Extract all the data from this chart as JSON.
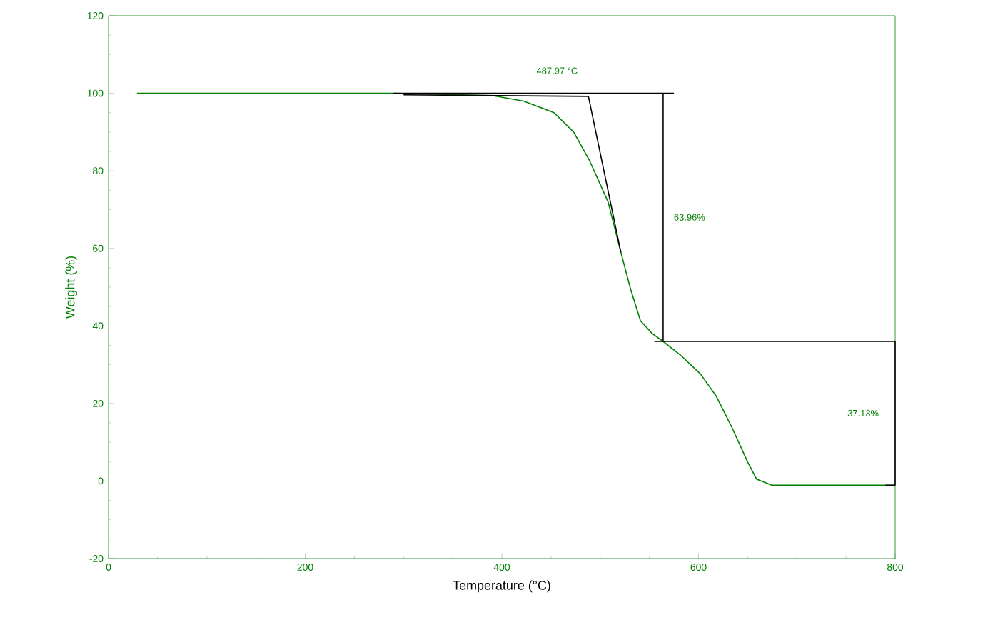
{
  "chart_data": {
    "type": "line",
    "xlabel": "Temperature (°C)",
    "ylabel": "Weight (%)",
    "xlim": [
      0,
      800
    ],
    "ylim": [
      -20,
      120
    ],
    "xticks": [
      0,
      200,
      400,
      600,
      800
    ],
    "yticks": [
      -20,
      0,
      20,
      40,
      60,
      80,
      100,
      120
    ],
    "series": [
      {
        "color": "#008000",
        "x": [
          29,
          290,
          390,
          422,
          453,
          473,
          489,
          508,
          521,
          531,
          541,
          553,
          564,
          582,
          602,
          618,
          634,
          650,
          659,
          675,
          800
        ],
        "values": [
          100,
          100,
          99.4,
          98,
          95,
          90,
          82.7,
          72,
          59,
          49.4,
          41.3,
          38,
          36,
          32.4,
          27.6,
          21.9,
          13.8,
          4.9,
          0.5,
          -1.1,
          -1.1
        ]
      },
      {
        "color": "#000000",
        "x": [
          290,
          575
        ],
        "values": [
          100,
          100
        ]
      },
      {
        "color": "#000000",
        "x": [
          300,
          488,
          521
        ],
        "values": [
          99.6,
          99.2,
          59
        ]
      },
      {
        "color": "#000000",
        "x": [
          564,
          564
        ],
        "values": [
          100,
          36
        ]
      },
      {
        "color": "#000000",
        "x": [
          555,
          800
        ],
        "values": [
          36,
          36
        ]
      },
      {
        "color": "#000000",
        "x": [
          800,
          800
        ],
        "values": [
          36,
          -1.1
        ]
      },
      {
        "color": "#000000",
        "x": [
          790,
          800
        ],
        "values": [
          -1.1,
          -1.1
        ]
      }
    ],
    "annotations": [
      {
        "text": "487.97 °C",
        "x": 487.97,
        "y": 100
      },
      {
        "text": "63.96%",
        "x": 564,
        "y": 68
      },
      {
        "text": "37.13%",
        "x": 800,
        "y": 17.5
      }
    ]
  }
}
